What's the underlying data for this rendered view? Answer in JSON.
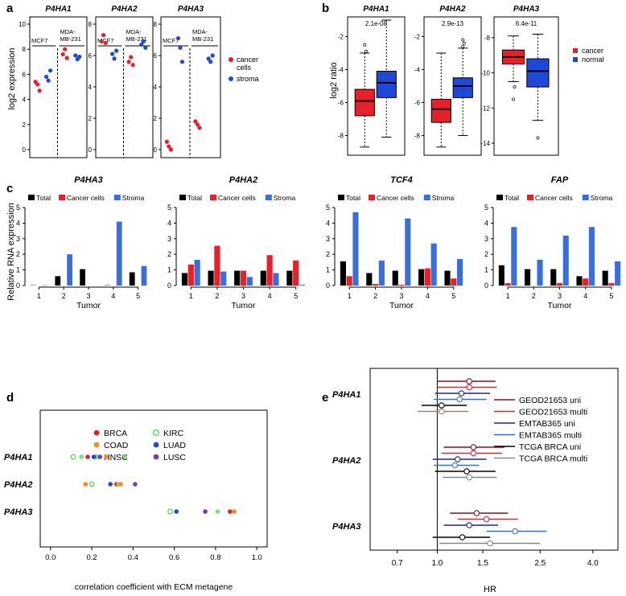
{
  "panel_labels": [
    "a",
    "b",
    "c",
    "d",
    "e"
  ],
  "chart_data": [
    {
      "type": "scatter",
      "panel": "a",
      "ylabel": "log2 expression",
      "legend": [
        {
          "label": "cancer",
          "label2": "cells",
          "color": "#e8202a"
        },
        {
          "label": "stroma",
          "color": "#1f48d8"
        }
      ],
      "subplots": [
        {
          "title": "P4HA1",
          "ylim": [
            0,
            10
          ],
          "yticks": [
            0,
            2,
            4,
            6,
            8,
            10
          ],
          "group_labels": [
            "MCF7",
            "MDA-",
            "MB-231"
          ],
          "cancer_left": [
            5.4,
            5.2,
            4.7
          ],
          "stroma_left": [
            5.8,
            5.5,
            6.3
          ],
          "cancer_right": [
            7.6,
            8.0,
            7.3
          ],
          "stroma_right": [
            7.5,
            7.2,
            7.4
          ]
        },
        {
          "title": "P4HA2",
          "ylim": [
            0,
            8
          ],
          "yticks": [
            0,
            2,
            4,
            6,
            8
          ],
          "group_labels": [
            "MCF7",
            "MDA-",
            "MB-231"
          ],
          "cancer_left": [
            6.9,
            7.3,
            6.8
          ],
          "stroma_left": [
            6.1,
            5.8,
            6.3
          ],
          "cancer_right": [
            5.6,
            5.9,
            5.4
          ],
          "stroma_right": [
            6.7,
            6.9,
            6.5
          ]
        },
        {
          "title": "P4HA3",
          "ylim": [
            0,
            8
          ],
          "yticks": [
            0,
            2,
            4,
            6,
            8
          ],
          "group_labels": [
            "MCF7",
            "MDA-",
            "MB-231"
          ],
          "cancer_left": [
            0.5,
            0.2,
            0.0
          ],
          "stroma_left": [
            7.1,
            6.5,
            5.6
          ],
          "cancer_right": [
            1.8,
            1.6,
            1.4
          ],
          "stroma_right": [
            5.8,
            5.6,
            6.0
          ]
        }
      ]
    },
    {
      "type": "boxplot",
      "panel": "b",
      "ylabel": "log2 ratio",
      "legend": [
        {
          "label": "cancer",
          "color": "#e8202a"
        },
        {
          "label": "normal",
          "color": "#1f48d8"
        }
      ],
      "subplots": [
        {
          "title": "P4HA1",
          "pvalue": "2.1e-08",
          "ylim": [
            -9,
            -1
          ],
          "yticks": [
            -8,
            -6,
            -4,
            -2
          ],
          "boxes": [
            {
              "group": "cancer",
              "whisker_low": -8.7,
              "q1": -6.8,
              "median": -5.9,
              "q3": -5.2,
              "whisker_high": -3.0,
              "outliers": [
                -2.5,
                -2.9
              ]
            },
            {
              "group": "normal",
              "whisker_low": -8.1,
              "q1": -5.7,
              "median": -4.8,
              "q3": -4.1,
              "whisker_high": -1.0,
              "outliers": []
            }
          ]
        },
        {
          "title": "P4HA2",
          "pvalue": "2.9e-13",
          "ylim": [
            -9,
            -1
          ],
          "yticks": [
            -8,
            -6,
            -4,
            -2
          ],
          "boxes": [
            {
              "group": "cancer",
              "whisker_low": -8.7,
              "q1": -7.2,
              "median": -6.4,
              "q3": -5.8,
              "whisker_high": -3.0,
              "outliers": []
            },
            {
              "group": "normal",
              "whisker_low": -8.0,
              "q1": -5.7,
              "median": -5.0,
              "q3": -4.5,
              "whisker_high": -2.7,
              "outliers": [
                -2.2,
                -2.4,
                -2.6
              ]
            }
          ]
        },
        {
          "title": "P4HA3",
          "pvalue": "6.4e-11",
          "ylim": [
            -14.5,
            -7
          ],
          "yticks": [
            -14,
            -12,
            -10,
            -8
          ],
          "boxes": [
            {
              "group": "cancer",
              "whisker_low": -10.5,
              "q1": -9.5,
              "median": -9.1,
              "q3": -8.7,
              "whisker_high": -7.9,
              "outliers": [
                -11.5,
                -10.8
              ]
            },
            {
              "group": "normal",
              "whisker_low": -12.7,
              "q1": -10.8,
              "median": -9.9,
              "q3": -9.2,
              "whisker_high": -7.8,
              "outliers": [
                -13.7
              ]
            }
          ]
        }
      ]
    },
    {
      "type": "bar",
      "panel": "c",
      "ylabel": "Relative RNA expression",
      "xlabel": "Tumor",
      "categories": [
        "1",
        "2",
        "3",
        "4",
        "5"
      ],
      "ylim": [
        0,
        5
      ],
      "yticks": [
        0,
        1,
        2,
        3,
        4,
        5
      ],
      "series_names": [
        "Total",
        "Cancer cells",
        "Stroma"
      ],
      "series_colors": [
        "#000000",
        "#e8202a",
        "#3a6fd8"
      ],
      "subplots": [
        {
          "title": "P4HA3",
          "values": [
            [
              0.02,
              0.6,
              1.05,
              0.02,
              0.85
            ],
            [
              0.0,
              0.0,
              0.0,
              0.0,
              0.0
            ],
            [
              0.02,
              2.0,
              0.0,
              4.1,
              1.25
            ]
          ]
        },
        {
          "title": "P4HA2",
          "values": [
            [
              0.8,
              0.95,
              0.95,
              0.95,
              0.95
            ],
            [
              1.35,
              2.55,
              0.95,
              1.95,
              1.6
            ],
            [
              1.65,
              0.9,
              0.55,
              0.8,
              0.05
            ]
          ]
        },
        {
          "title": "TCF4",
          "values": [
            [
              1.55,
              0.8,
              0.95,
              1.05,
              0.95
            ],
            [
              0.6,
              0.1,
              0.05,
              1.1,
              0.45
            ],
            [
              4.7,
              1.6,
              4.3,
              2.7,
              1.7
            ]
          ]
        },
        {
          "title": "FAP",
          "values": [
            [
              1.3,
              1.05,
              1.05,
              0.6,
              0.95
            ],
            [
              0.15,
              0.0,
              0.15,
              0.45,
              0.15
            ],
            [
              3.75,
              1.65,
              3.2,
              3.75,
              1.55
            ]
          ]
        }
      ]
    },
    {
      "type": "scatter",
      "panel": "d",
      "xlabel": "correlation coefficient with ECM metagene",
      "xlim": [
        -0.05,
        1.05
      ],
      "xticks": [
        "0.0",
        "0.2",
        "0.4",
        "0.6",
        "0.8",
        "1.0"
      ],
      "legend": [
        {
          "label": "BRCA",
          "color": "#e8202a"
        },
        {
          "label": "COAD",
          "color": "#f08a2a"
        },
        {
          "label": "HNSC",
          "color": "#7ae07a"
        },
        {
          "label": "KIRC",
          "color": "#62d662"
        },
        {
          "label": "LUAD",
          "color": "#1f48d8"
        },
        {
          "label": "LUSC",
          "color": "#6a3fb8"
        }
      ],
      "categories": [
        "P4HA1",
        "P4HA2",
        "P4HA3"
      ],
      "points": [
        {
          "gene": "P4HA1",
          "cohort": "KIRC",
          "x": 0.11
        },
        {
          "gene": "P4HA1",
          "cohort": "HNSC",
          "x": 0.15
        },
        {
          "gene": "P4HA1",
          "cohort": "BRCA",
          "x": 0.18
        },
        {
          "gene": "P4HA1",
          "cohort": "LUAD",
          "x": 0.21
        },
        {
          "gene": "P4HA1",
          "cohort": "LUSC",
          "x": 0.24
        },
        {
          "gene": "P4HA1",
          "cohort": "COAD",
          "x": 0.27
        },
        {
          "gene": "P4HA1",
          "cohort": "HNSC",
          "x": 0.36
        },
        {
          "gene": "P4HA2",
          "cohort": "COAD",
          "x": 0.17
        },
        {
          "gene": "P4HA2",
          "cohort": "KIRC",
          "x": 0.2
        },
        {
          "gene": "P4HA2",
          "cohort": "LUAD",
          "x": 0.29
        },
        {
          "gene": "P4HA2",
          "cohort": "BRCA",
          "x": 0.32
        },
        {
          "gene": "P4HA2",
          "cohort": "HNSC",
          "x": 0.33
        },
        {
          "gene": "P4HA2",
          "cohort": "COAD",
          "x": 0.34
        },
        {
          "gene": "P4HA2",
          "cohort": "LUSC",
          "x": 0.41
        },
        {
          "gene": "P4HA3",
          "cohort": "KIRC",
          "x": 0.58
        },
        {
          "gene": "P4HA3",
          "cohort": "LUAD",
          "x": 0.61
        },
        {
          "gene": "P4HA3",
          "cohort": "LUSC",
          "x": 0.75
        },
        {
          "gene": "P4HA3",
          "cohort": "HNSC",
          "x": 0.81
        },
        {
          "gene": "P4HA3",
          "cohort": "BRCA",
          "x": 0.87
        },
        {
          "gene": "P4HA3",
          "cohort": "COAD",
          "x": 0.89
        }
      ]
    },
    {
      "type": "forest",
      "panel": "e",
      "xlabel": "HR",
      "xscale": "log",
      "xlim": [
        0.55,
        5.0
      ],
      "xticks": [
        0.7,
        1.0,
        1.5,
        2.5,
        4.0
      ],
      "xtick_labels": [
        "0.7",
        "1.0",
        "1.5",
        "2.5",
        "4.0"
      ],
      "reference": 1.0,
      "legend": [
        {
          "label": "GEOD21653 uni",
          "color": "#8b1020"
        },
        {
          "label": "GEOD21653 multi",
          "color": "#e8202a"
        },
        {
          "label": "EMTAB365 uni",
          "color": "#1a2a8c"
        },
        {
          "label": "EMTAB365 multi",
          "color": "#3a6fd8"
        },
        {
          "label": "TCGA BRCA uni",
          "color": "#000000"
        },
        {
          "label": "TCGA BRCA multi",
          "color": "#888888"
        }
      ],
      "categories": [
        "P4HA1",
        "P4HA2",
        "P4HA3"
      ],
      "rows": [
        {
          "gene": "P4HA1",
          "model": "GEOD21653 uni",
          "hr": 1.33,
          "low": 1.0,
          "high": 1.68
        },
        {
          "gene": "P4HA1",
          "model": "GEOD21653 multi",
          "hr": 1.33,
          "low": 1.0,
          "high": 1.7
        },
        {
          "gene": "P4HA1",
          "model": "EMTAB365 uni",
          "hr": 1.24,
          "low": 0.98,
          "high": 1.6
        },
        {
          "gene": "P4HA1",
          "model": "EMTAB365 multi",
          "hr": 1.22,
          "low": 0.97,
          "high": 1.55
        },
        {
          "gene": "P4HA1",
          "model": "TCGA BRCA uni",
          "hr": 1.04,
          "low": 0.87,
          "high": 1.3
        },
        {
          "gene": "P4HA1",
          "model": "TCGA BRCA multi",
          "hr": 1.04,
          "low": 0.84,
          "high": 1.32
        },
        {
          "gene": "P4HA2",
          "model": "GEOD21653 uni",
          "hr": 1.38,
          "low": 1.06,
          "high": 1.82
        },
        {
          "gene": "P4HA2",
          "model": "GEOD21653 multi",
          "hr": 1.38,
          "low": 1.04,
          "high": 1.78
        },
        {
          "gene": "P4HA2",
          "model": "EMTAB365 uni",
          "hr": 1.2,
          "low": 0.96,
          "high": 1.55
        },
        {
          "gene": "P4HA2",
          "model": "EMTAB365 multi",
          "hr": 1.17,
          "low": 0.97,
          "high": 1.45
        },
        {
          "gene": "P4HA2",
          "model": "TCGA BRCA uni",
          "hr": 1.3,
          "low": 0.98,
          "high": 1.68
        },
        {
          "gene": "P4HA2",
          "model": "TCGA BRCA multi",
          "hr": 1.33,
          "low": 1.05,
          "high": 1.7
        },
        {
          "gene": "P4HA3",
          "model": "GEOD21653 uni",
          "hr": 1.42,
          "low": 1.12,
          "high": 1.88
        },
        {
          "gene": "P4HA3",
          "model": "GEOD21653 multi",
          "hr": 1.55,
          "low": 1.2,
          "high": 2.05
        },
        {
          "gene": "P4HA3",
          "model": "EMTAB365 uni",
          "hr": 1.33,
          "low": 1.06,
          "high": 1.72
        },
        {
          "gene": "P4HA3",
          "model": "EMTAB365 multi",
          "hr": 2.0,
          "low": 1.55,
          "high": 2.65
        },
        {
          "gene": "P4HA3",
          "model": "TCGA BRCA uni",
          "hr": 1.25,
          "low": 0.96,
          "high": 1.6
        },
        {
          "gene": "P4HA3",
          "model": "TCGA BRCA multi",
          "hr": 1.6,
          "low": 1.02,
          "high": 2.5
        }
      ]
    }
  ]
}
